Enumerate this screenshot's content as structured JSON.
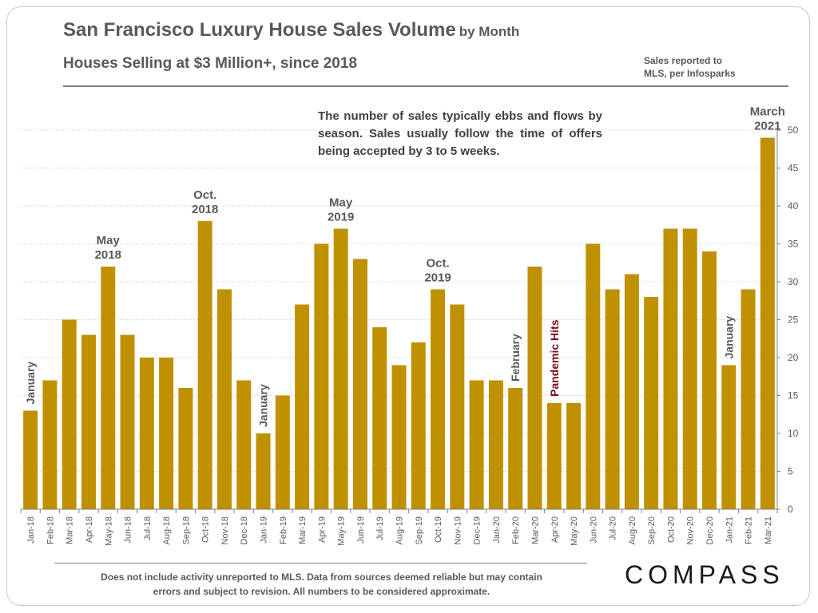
{
  "header": {
    "title": "San Francisco Luxury House Sales Volume",
    "title_suffix": "by Month",
    "subtitle": "Houses Selling at $3 Million+, since 2018",
    "source_note": "Sales reported to\nMLS, per Infosparks"
  },
  "commentary": "The number of sales typically ebbs and flows by season. Sales usually follow the time of offers being accepted by 3 to 5 weeks.",
  "footer": {
    "disclaimer": "Does not include activity unreported to MLS. Data from sources deemed reliable but may contain errors and subject to revision.  All numbers to be considered approximate.",
    "logo": "COMPASS"
  },
  "colors": {
    "bar": "#BF9000",
    "text": "#595959",
    "annotation": "#595959",
    "highlight_annotation": "#7B0C1C",
    "grid": "#D9D9D9"
  },
  "chart_data": {
    "type": "bar",
    "categories": [
      "Jan-18",
      "Feb-18",
      "Mar-18",
      "Apr-18",
      "May-18",
      "Jun-18",
      "Jul-18",
      "Aug-18",
      "Sep-18",
      "Oct-18",
      "Nov-18",
      "Dec-18",
      "Jan-19",
      "Feb-19",
      "Mar-19",
      "Apr-19",
      "May-19",
      "Jun-19",
      "Jul-19",
      "Aug-19",
      "Sep-19",
      "Oct-19",
      "Nov-19",
      "Dec-19",
      "Jan-20",
      "Feb-20",
      "Mar-20",
      "Apr-20",
      "May-20",
      "Jun-20",
      "Jul-20",
      "Aug-20",
      "Sep-20",
      "Oct-20",
      "Nov-20",
      "Dec-20",
      "Jan-21",
      "Feb-21",
      "Mar-21"
    ],
    "values": [
      13,
      17,
      25,
      23,
      32,
      23,
      20,
      20,
      16,
      38,
      29,
      17,
      10,
      15,
      27,
      35,
      37,
      33,
      24,
      19,
      22,
      29,
      27,
      17,
      17,
      16,
      32,
      14,
      14,
      35,
      29,
      31,
      28,
      37,
      37,
      34,
      19,
      29,
      49
    ],
    "y_axis": {
      "position": "right",
      "min": 0,
      "max": 50,
      "ticks": [
        0,
        5,
        10,
        15,
        20,
        25,
        30,
        35,
        40,
        45,
        50
      ]
    },
    "grid": true,
    "annotations": [
      {
        "category": "Jan-18",
        "lines": [
          "January"
        ],
        "vertical": true,
        "highlight": false
      },
      {
        "category": "May-18",
        "lines": [
          "May",
          "2018"
        ],
        "vertical": false,
        "highlight": false
      },
      {
        "category": "Oct-18",
        "lines": [
          "Oct.",
          "2018"
        ],
        "vertical": false,
        "highlight": false
      },
      {
        "category": "Jan-19",
        "lines": [
          "January"
        ],
        "vertical": true,
        "highlight": false
      },
      {
        "category": "May-19",
        "lines": [
          "May",
          "2019"
        ],
        "vertical": false,
        "highlight": false
      },
      {
        "category": "Oct-19",
        "lines": [
          "Oct.",
          "2019"
        ],
        "vertical": false,
        "highlight": false
      },
      {
        "category": "Feb-20",
        "lines": [
          "February"
        ],
        "vertical": true,
        "highlight": false
      },
      {
        "category": "Apr-20",
        "lines": [
          "Pandemic Hits"
        ],
        "vertical": true,
        "highlight": true
      },
      {
        "category": "Jan-21",
        "lines": [
          "January"
        ],
        "vertical": true,
        "highlight": false
      },
      {
        "category": "Mar-21",
        "lines": [
          "March",
          "2021"
        ],
        "vertical": false,
        "highlight": false
      }
    ]
  }
}
